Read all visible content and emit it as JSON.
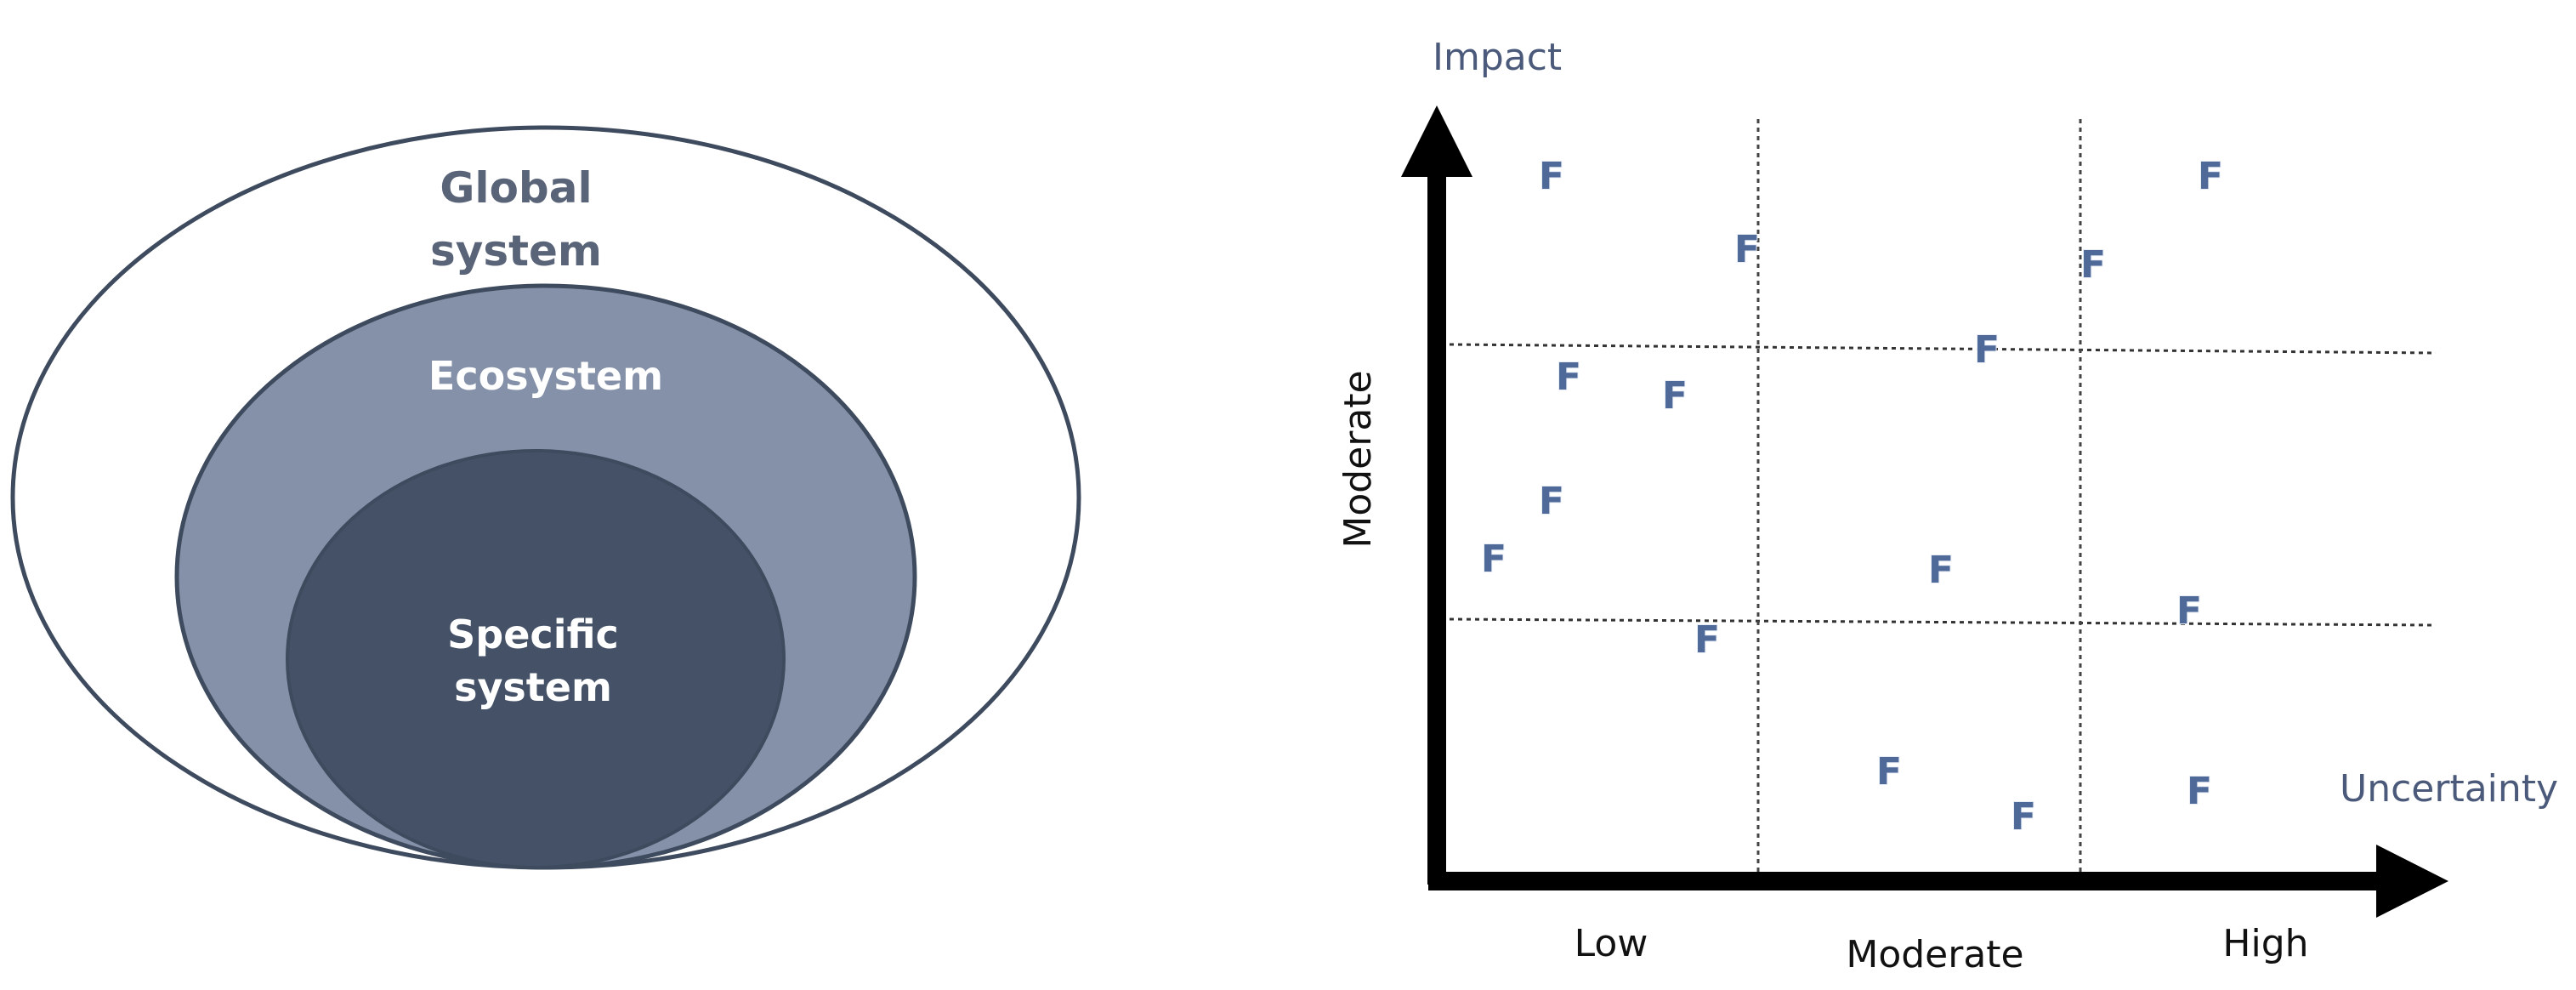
{
  "nested_diagram": {
    "outer_label_line1": "Global",
    "outer_label_line2": "system",
    "middle_label": "Ecosystem",
    "inner_label_line1": "Specific",
    "inner_label_line2": "system",
    "colors": {
      "outer_fill": "#ffffff",
      "middle_fill": "#8591a8",
      "inner_fill": "#445166",
      "stroke": "#3e4a5e"
    }
  },
  "matrix": {
    "y_axis_title": "Impact",
    "x_axis_title": "Uncertainty",
    "y_mid_label": "Moderate",
    "x_labels": [
      "Low",
      "Moderate",
      "High"
    ],
    "marker_label": "F",
    "marker_color": "#4f6a99"
  }
}
